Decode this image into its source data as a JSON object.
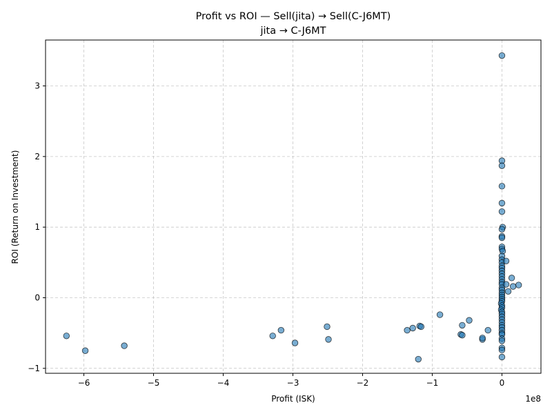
{
  "chart_data": {
    "type": "scatter",
    "title": "Profit vs ROI — Sell(jita) → Sell(C-J6MT)",
    "subtitle": "jita → C-J6MT",
    "xlabel": "Profit (ISK)",
    "ylabel": "ROI (Return on Investment)",
    "x_scale_label": "1e8",
    "x_scale": 100000000,
    "xlim": [
      -6.55,
      0.56
    ],
    "ylim": [
      -1.07,
      3.65
    ],
    "x_ticks": [
      -6,
      -5,
      -4,
      -3,
      -2,
      -1,
      0
    ],
    "x_tick_labels": [
      "−6",
      "−5",
      "−4",
      "−3",
      "−2",
      "−1",
      "0"
    ],
    "y_ticks": [
      -1,
      0,
      1,
      2,
      3
    ],
    "y_tick_labels": [
      "−1",
      "0",
      "1",
      "2",
      "3"
    ],
    "grid": true,
    "marker_color": "#1f77b4",
    "points": [
      {
        "x": -6.25,
        "y": -0.54
      },
      {
        "x": -5.98,
        "y": -0.75
      },
      {
        "x": -5.42,
        "y": -0.68
      },
      {
        "x": -3.29,
        "y": -0.54
      },
      {
        "x": -3.17,
        "y": -0.46
      },
      {
        "x": -2.97,
        "y": -0.64
      },
      {
        "x": -2.51,
        "y": -0.41
      },
      {
        "x": -2.49,
        "y": -0.59
      },
      {
        "x": -1.36,
        "y": -0.46
      },
      {
        "x": -1.28,
        "y": -0.43
      },
      {
        "x": -1.18,
        "y": -0.4
      },
      {
        "x": -1.16,
        "y": -0.41
      },
      {
        "x": -1.2,
        "y": -0.87
      },
      {
        "x": -0.89,
        "y": -0.24
      },
      {
        "x": -0.59,
        "y": -0.52
      },
      {
        "x": -0.57,
        "y": -0.53
      },
      {
        "x": -0.57,
        "y": -0.39
      },
      {
        "x": -0.47,
        "y": -0.32
      },
      {
        "x": -0.28,
        "y": -0.59
      },
      {
        "x": -0.28,
        "y": -0.57
      },
      {
        "x": -0.2,
        "y": -0.46
      },
      {
        "x": 0.0,
        "y": 3.43
      },
      {
        "x": 0.0,
        "y": 1.94
      },
      {
        "x": 0.0,
        "y": 1.87
      },
      {
        "x": 0.0,
        "y": 1.58
      },
      {
        "x": 0.0,
        "y": 1.34
      },
      {
        "x": 0.0,
        "y": 1.22
      },
      {
        "x": 0.01,
        "y": 1.0
      },
      {
        "x": 0.0,
        "y": 0.97
      },
      {
        "x": 0.0,
        "y": 0.87
      },
      {
        "x": 0.0,
        "y": 0.85
      },
      {
        "x": 0.0,
        "y": 0.72
      },
      {
        "x": 0.0,
        "y": 0.69
      },
      {
        "x": 0.01,
        "y": 0.66
      },
      {
        "x": 0.0,
        "y": 0.59
      },
      {
        "x": 0.0,
        "y": 0.54
      },
      {
        "x": 0.0,
        "y": 0.5
      },
      {
        "x": 0.06,
        "y": 0.52
      },
      {
        "x": 0.0,
        "y": 0.45
      },
      {
        "x": 0.0,
        "y": 0.42
      },
      {
        "x": 0.0,
        "y": 0.38
      },
      {
        "x": 0.0,
        "y": 0.34
      },
      {
        "x": 0.0,
        "y": 0.3
      },
      {
        "x": 0.14,
        "y": 0.28
      },
      {
        "x": 0.0,
        "y": 0.26
      },
      {
        "x": 0.0,
        "y": 0.22
      },
      {
        "x": 0.0,
        "y": 0.19
      },
      {
        "x": 0.06,
        "y": 0.19
      },
      {
        "x": 0.24,
        "y": 0.18
      },
      {
        "x": 0.16,
        "y": 0.16
      },
      {
        "x": 0.0,
        "y": 0.14
      },
      {
        "x": 0.0,
        "y": 0.11
      },
      {
        "x": 0.09,
        "y": 0.09
      },
      {
        "x": 0.0,
        "y": 0.07
      },
      {
        "x": 0.0,
        "y": 0.04
      },
      {
        "x": 0.0,
        "y": 0.01
      },
      {
        "x": 0.0,
        "y": -0.02
      },
      {
        "x": 0.0,
        "y": -0.05
      },
      {
        "x": -0.01,
        "y": -0.08
      },
      {
        "x": 0.0,
        "y": -0.11
      },
      {
        "x": 0.0,
        "y": -0.14
      },
      {
        "x": -0.01,
        "y": -0.17
      },
      {
        "x": 0.0,
        "y": -0.2
      },
      {
        "x": 0.0,
        "y": -0.23
      },
      {
        "x": 0.0,
        "y": -0.27
      },
      {
        "x": 0.0,
        "y": -0.31
      },
      {
        "x": 0.0,
        "y": -0.35
      },
      {
        "x": 0.0,
        "y": -0.39
      },
      {
        "x": 0.0,
        "y": -0.42
      },
      {
        "x": 0.0,
        "y": -0.46
      },
      {
        "x": 0.0,
        "y": -0.5
      },
      {
        "x": 0.0,
        "y": -0.52
      },
      {
        "x": 0.0,
        "y": -0.58
      },
      {
        "x": 0.0,
        "y": -0.61
      },
      {
        "x": 0.0,
        "y": -0.71
      },
      {
        "x": 0.0,
        "y": -0.74
      },
      {
        "x": 0.0,
        "y": -0.84
      }
    ]
  }
}
